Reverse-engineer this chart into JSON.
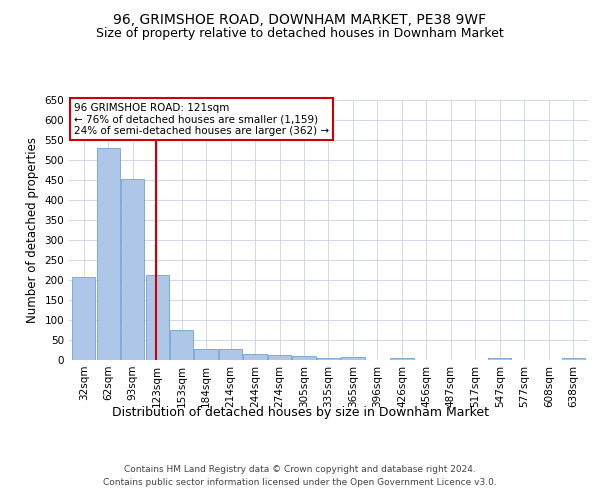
{
  "title": "96, GRIMSHOE ROAD, DOWNHAM MARKET, PE38 9WF",
  "subtitle": "Size of property relative to detached houses in Downham Market",
  "xlabel": "Distribution of detached houses by size in Downham Market",
  "ylabel": "Number of detached properties",
  "footer_line1": "Contains HM Land Registry data © Crown copyright and database right 2024.",
  "footer_line2": "Contains public sector information licensed under the Open Government Licence v3.0.",
  "categories": [
    "32sqm",
    "62sqm",
    "93sqm",
    "123sqm",
    "153sqm",
    "184sqm",
    "214sqm",
    "244sqm",
    "274sqm",
    "305sqm",
    "335sqm",
    "365sqm",
    "396sqm",
    "426sqm",
    "456sqm",
    "487sqm",
    "517sqm",
    "547sqm",
    "577sqm",
    "608sqm",
    "638sqm"
  ],
  "values": [
    207,
    530,
    452,
    212,
    76,
    27,
    27,
    15,
    12,
    10,
    4,
    7,
    0,
    5,
    0,
    0,
    0,
    5,
    0,
    0,
    5
  ],
  "bar_color": "#aec6e8",
  "bar_edge_color": "#5a96c8",
  "vline_color": "#cc0000",
  "vline_pos": 2.94,
  "annotation_text": "96 GRIMSHOE ROAD: 121sqm\n← 76% of detached houses are smaller (1,159)\n24% of semi-detached houses are larger (362) →",
  "ylim": [
    0,
    650
  ],
  "yticks": [
    0,
    50,
    100,
    150,
    200,
    250,
    300,
    350,
    400,
    450,
    500,
    550,
    600,
    650
  ],
  "background_color": "#ffffff",
  "grid_color": "#d0d8e8",
  "title_fontsize": 10,
  "subtitle_fontsize": 9,
  "tick_fontsize": 7.5,
  "ylabel_fontsize": 8.5,
  "xlabel_fontsize": 9,
  "footer_fontsize": 6.5
}
